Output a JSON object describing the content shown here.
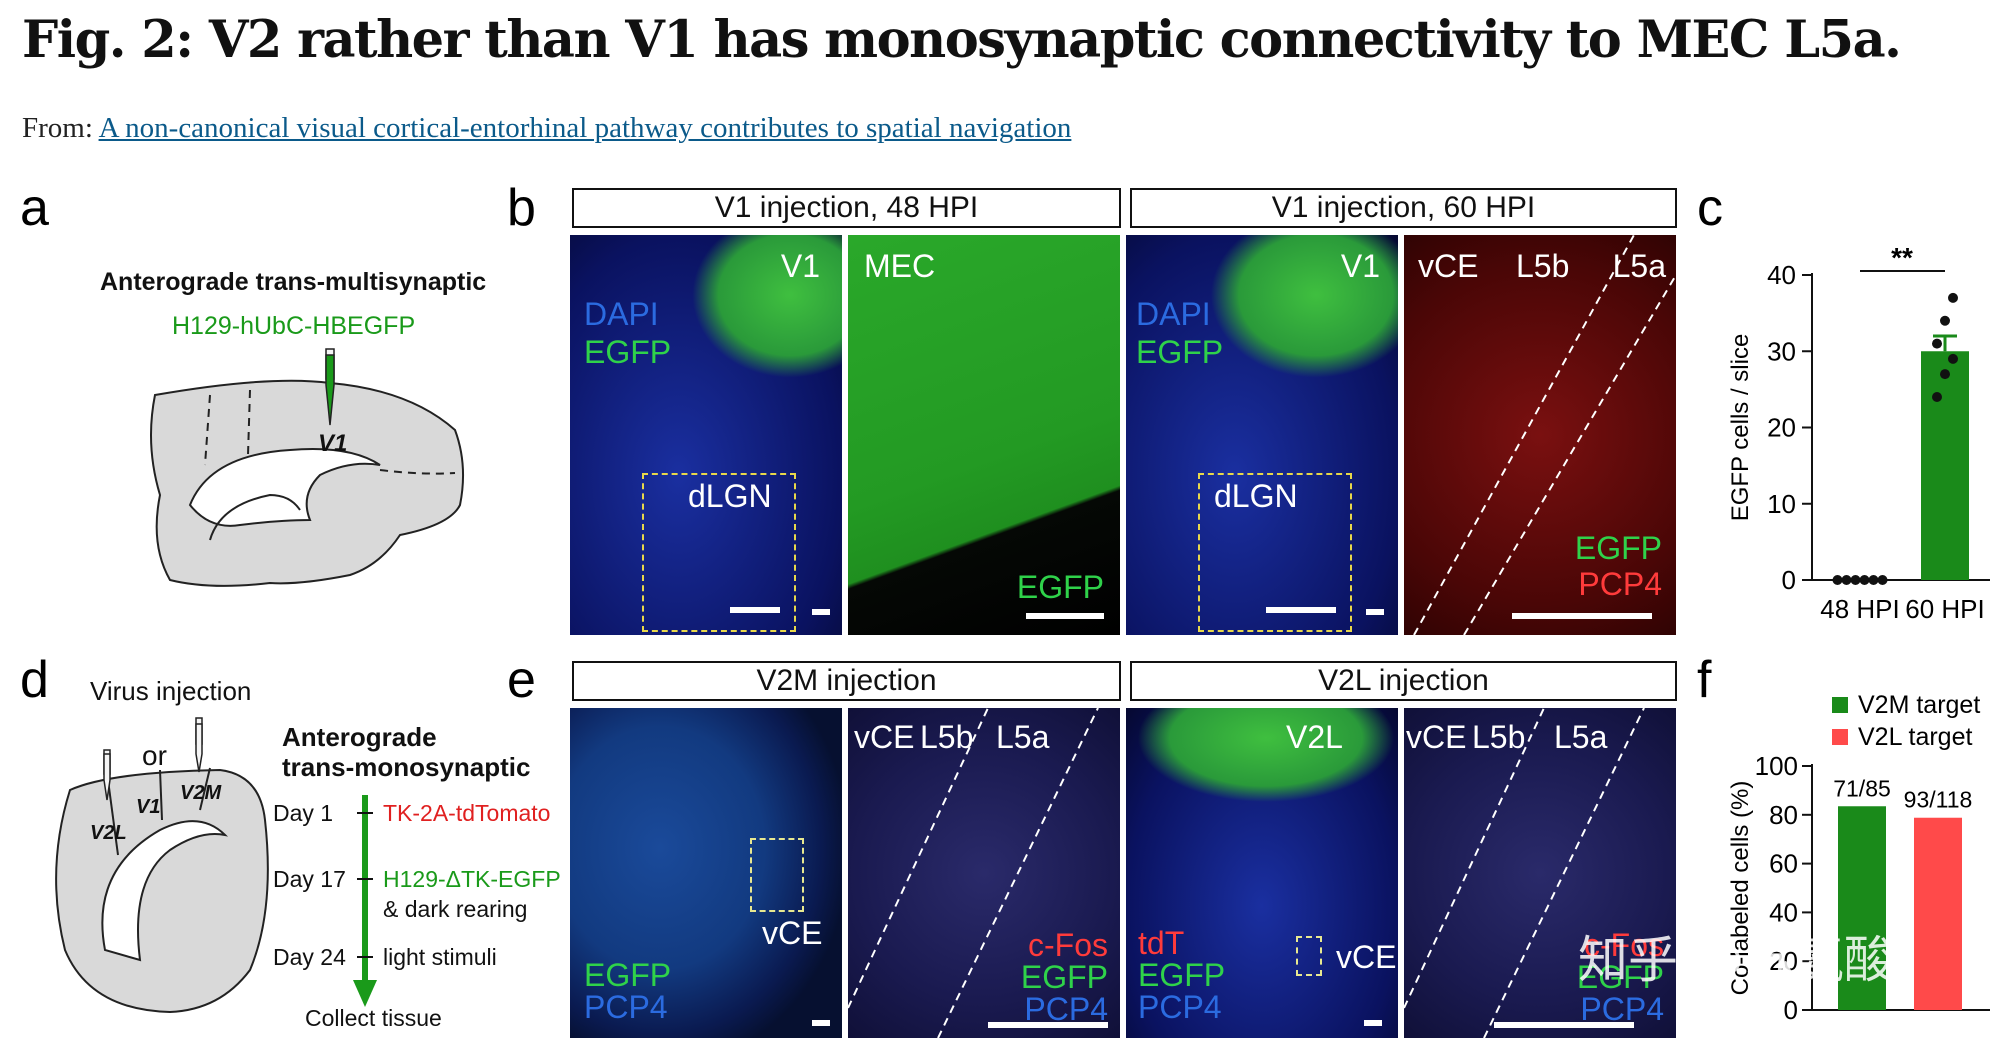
{
  "title": "Fig. 2: V2 rather than V1 has monosynaptic connectivity to MEC L5a.",
  "from_prefix": "From:",
  "from_link": "A non-canonical visual cortical-entorhinal pathway contributes to spatial navigation",
  "panels": {
    "a": {
      "label": "a",
      "heading": "Anterograde trans-multisynaptic",
      "virus": "H129-hUbC-HBEGFP",
      "region": "V1"
    },
    "b": {
      "label": "b",
      "header_left": "V1 injection, 48 HPI",
      "header_right": "V1 injection, 60 HPI",
      "img1": {
        "region": "V1",
        "dapi": "DAPI",
        "egfp": "EGFP",
        "inset": "dLGN"
      },
      "img2": {
        "region": "MEC",
        "egfp": "EGFP"
      },
      "img3": {
        "region": "V1",
        "dapi": "DAPI",
        "egfp": "EGFP",
        "inset": "dLGN"
      },
      "img4": {
        "vce": "vCE",
        "l5b": "L5b",
        "l5a": "L5a",
        "egfp": "EGFP",
        "pcp4": "PCP4"
      }
    },
    "c": {
      "label": "c",
      "sig": "**"
    },
    "d": {
      "label": "d",
      "virus_injection": "Virus injection",
      "or": "or",
      "v2l": "V2L",
      "v1": "V1",
      "v2m": "V2M",
      "heading1": "Anterograde",
      "heading2": "trans-monosynaptic",
      "steps": [
        {
          "day": "Day 1",
          "text": "TK-2A-tdTomato",
          "text2": ""
        },
        {
          "day": "Day 17",
          "text": "H129-ΔTK-EGFP",
          "text2": "& dark rearing"
        },
        {
          "day": "Day 24",
          "text": "light stimuli",
          "text2": ""
        }
      ],
      "collect": "Collect tissue"
    },
    "e": {
      "label": "e",
      "header_left": "V2M injection",
      "header_right": "V2L injection",
      "img1": {
        "vce": "vCE",
        "egfp": "EGFP",
        "pcp4": "PCP4"
      },
      "img2": {
        "vce": "vCE",
        "l5b": "L5b",
        "l5a": "L5a",
        "cfos": "c-Fos",
        "egfp": "EGFP",
        "pcp4": "PCP4"
      },
      "img3": {
        "region": "V2L",
        "vce": "vCE",
        "tdt": "tdT",
        "egfp": "EGFP",
        "pcp4": "PCP4"
      },
      "img4": {
        "vce": "vCE",
        "l5b": "L5b",
        "l5a": "L5a",
        "cfos": "c-Fos",
        "egfp": "EGFP",
        "pcp4": "PCP4"
      }
    },
    "f": {
      "label": "f"
    }
  },
  "watermark": "知乎 @苏氨酸",
  "chart_data": [
    {
      "panel": "c",
      "type": "bar",
      "title": "",
      "categories": [
        "48 HPI",
        "60 HPI"
      ],
      "values": [
        0,
        30
      ],
      "points": [
        [
          0,
          0,
          0,
          0,
          0,
          0
        ],
        [
          24,
          27,
          29,
          31,
          34,
          37
        ]
      ],
      "error": [
        0,
        2
      ],
      "ylabel": "EGFP cells / slice",
      "ylim": [
        0,
        40
      ],
      "yticks": [
        0,
        10,
        20,
        30,
        40
      ],
      "colors": [
        "#1a8a1a",
        "#1a8a1a"
      ],
      "annotation": "**"
    },
    {
      "panel": "f",
      "type": "bar",
      "categories": [
        "V2M target",
        "V2L target"
      ],
      "values": [
        83.5,
        78.8
      ],
      "bar_labels": [
        "71/85",
        "93/118"
      ],
      "legend": [
        "V2M target",
        "V2L target"
      ],
      "colors": [
        "#1a8a1a",
        "#ff4a4a"
      ],
      "ylabel": "Co-labeled cells (%)",
      "ylim": [
        0,
        100
      ],
      "yticks": [
        0,
        20,
        40,
        60,
        80,
        100
      ]
    }
  ]
}
